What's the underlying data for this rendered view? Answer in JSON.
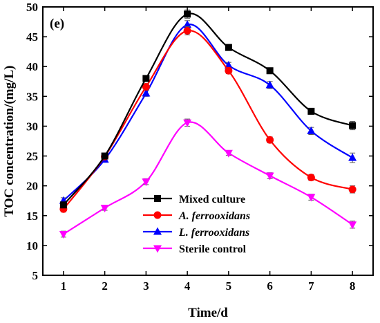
{
  "chart_data": {
    "type": "line",
    "panel_label": "(e)",
    "xlabel": "Time/d",
    "ylabel": "TOC concentration/(mg/L)",
    "x": [
      1,
      2,
      3,
      4,
      5,
      6,
      7,
      8
    ],
    "xlim": [
      0.5,
      8.5
    ],
    "ylim": [
      5,
      50
    ],
    "xticks": [
      "1",
      "2",
      "3",
      "4",
      "5",
      "6",
      "7",
      "8"
    ],
    "yticks": [
      "5",
      "10",
      "15",
      "20",
      "25",
      "30",
      "35",
      "40",
      "45",
      "50"
    ],
    "grid": false,
    "legend_position": "lower-center",
    "series": [
      {
        "name": "Mixed culture",
        "italic": false,
        "color": "#000000",
        "marker": "square",
        "values": [
          16.8,
          25.0,
          38.0,
          48.8,
          43.2,
          39.3,
          32.5,
          30.1
        ],
        "error": [
          0.5,
          0.4,
          0.5,
          0.7,
          0.5,
          0.5,
          0.5,
          0.7
        ]
      },
      {
        "name": "A. ferrooxidans",
        "italic": true,
        "color": "#ff0000",
        "marker": "circle",
        "values": [
          16.1,
          24.9,
          36.6,
          46.0,
          39.3,
          27.7,
          21.4,
          19.4
        ],
        "error": [
          0.5,
          0.4,
          0.5,
          0.7,
          0.5,
          0.5,
          0.5,
          0.6
        ]
      },
      {
        "name": "L. ferrooxidans",
        "italic": true,
        "color": "#0000ff",
        "marker": "triangle-up",
        "values": [
          17.5,
          24.4,
          35.5,
          47.0,
          40.2,
          36.9,
          29.2,
          24.7
        ],
        "error": [
          0.5,
          0.4,
          0.5,
          0.7,
          0.5,
          0.6,
          0.6,
          0.8
        ]
      },
      {
        "name": "Sterile control",
        "italic": false,
        "color": "#ff00ff",
        "marker": "triangle-down",
        "values": [
          11.9,
          16.3,
          20.7,
          30.6,
          25.5,
          21.7,
          18.1,
          13.5
        ],
        "error": [
          0.5,
          0.4,
          0.5,
          0.6,
          0.4,
          0.5,
          0.5,
          0.6
        ]
      }
    ]
  }
}
